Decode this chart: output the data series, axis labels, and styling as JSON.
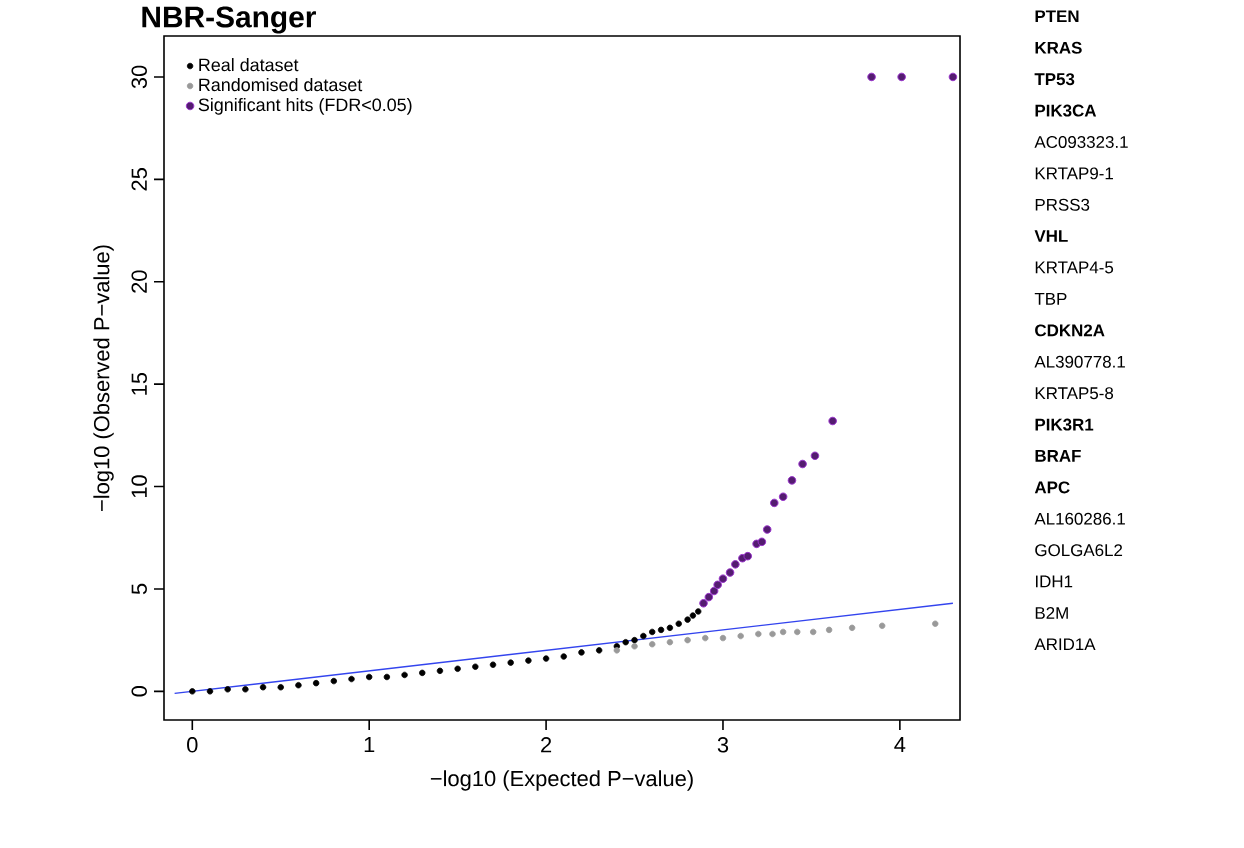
{
  "chart_data": {
    "type": "scatter",
    "title": "NBR-Sanger",
    "xlabel": "−log10 (Expected P−value)",
    "ylabel": "−log10 (Observed P−value)",
    "xlim": [
      -0.16,
      4.34
    ],
    "ylim": [
      -1.4,
      32
    ],
    "xticks": [
      0,
      1,
      2,
      3,
      4
    ],
    "yticks": [
      0,
      5,
      10,
      15,
      20,
      25,
      30
    ],
    "grid": false,
    "legend": "top left",
    "marker": "circle",
    "series": [
      {
        "name": "Real dataset",
        "color": "#000000",
        "x": [
          0,
          0.1,
          0.2,
          0.3,
          0.4,
          0.5,
          0.6,
          0.7,
          0.8,
          0.9,
          1.0,
          1.1,
          1.2,
          1.3,
          1.4,
          1.5,
          1.6,
          1.7,
          1.8,
          1.9,
          2.0,
          2.1,
          2.2,
          2.3,
          2.4,
          2.45,
          2.5,
          2.55,
          2.6,
          2.65,
          2.7,
          2.75,
          2.8,
          2.83,
          2.86
        ],
        "values": [
          0,
          0,
          0.1,
          0.1,
          0.2,
          0.2,
          0.3,
          0.4,
          0.5,
          0.6,
          0.7,
          0.7,
          0.8,
          0.9,
          1.0,
          1.1,
          1.2,
          1.3,
          1.4,
          1.5,
          1.6,
          1.7,
          1.9,
          2.0,
          2.2,
          2.4,
          2.5,
          2.7,
          2.9,
          3.0,
          3.1,
          3.3,
          3.5,
          3.7,
          3.9
        ]
      },
      {
        "name": "Randomised dataset",
        "color": "#999999",
        "x": [
          2.4,
          2.5,
          2.6,
          2.7,
          2.8,
          2.9,
          3.0,
          3.1,
          3.2,
          3.28,
          3.34,
          3.42,
          3.51,
          3.6,
          3.73,
          3.9,
          4.2
        ],
        "values": [
          2.0,
          2.2,
          2.3,
          2.4,
          2.5,
          2.6,
          2.6,
          2.7,
          2.8,
          2.8,
          2.9,
          2.9,
          2.9,
          3.0,
          3.1,
          3.2,
          3.3
        ]
      },
      {
        "name": "Significant hits (FDR<0.05)",
        "color": "#9933cc",
        "x": [
          2.89,
          2.92,
          2.95,
          2.97,
          3.0,
          3.04,
          3.07,
          3.11,
          3.14,
          3.19,
          3.22,
          3.25,
          3.29,
          3.34,
          3.39,
          3.45,
          3.52,
          3.62,
          3.84,
          4.01,
          4.3
        ],
        "values": [
          4.3,
          4.6,
          4.9,
          5.2,
          5.5,
          5.8,
          6.2,
          6.5,
          6.6,
          7.2,
          7.3,
          7.9,
          9.2,
          9.5,
          10.3,
          11.1,
          11.5,
          13.2,
          30,
          30,
          30
        ]
      },
      {
        "type": "line",
        "color": "#3344ee",
        "marker": "none",
        "x": [
          -0.1,
          4.3
        ],
        "values": [
          -0.1,
          4.3
        ]
      }
    ],
    "annotations": [
      "**PTEN**",
      "**KRAS**",
      "**TP53**",
      "**PIK3CA**",
      "AC093323.1",
      "KRTAP9-1",
      "PRSS3",
      "**VHL**",
      "KRTAP4-5",
      "TBP",
      "**CDKN2A**",
      "AL390778.1",
      "KRTAP5-8",
      "**PIK3R1**",
      "**BRAF**",
      "**APC**",
      "AL160286.1",
      "GOLGA6L2",
      "IDH1",
      "B2M",
      "ARID1A"
    ]
  }
}
